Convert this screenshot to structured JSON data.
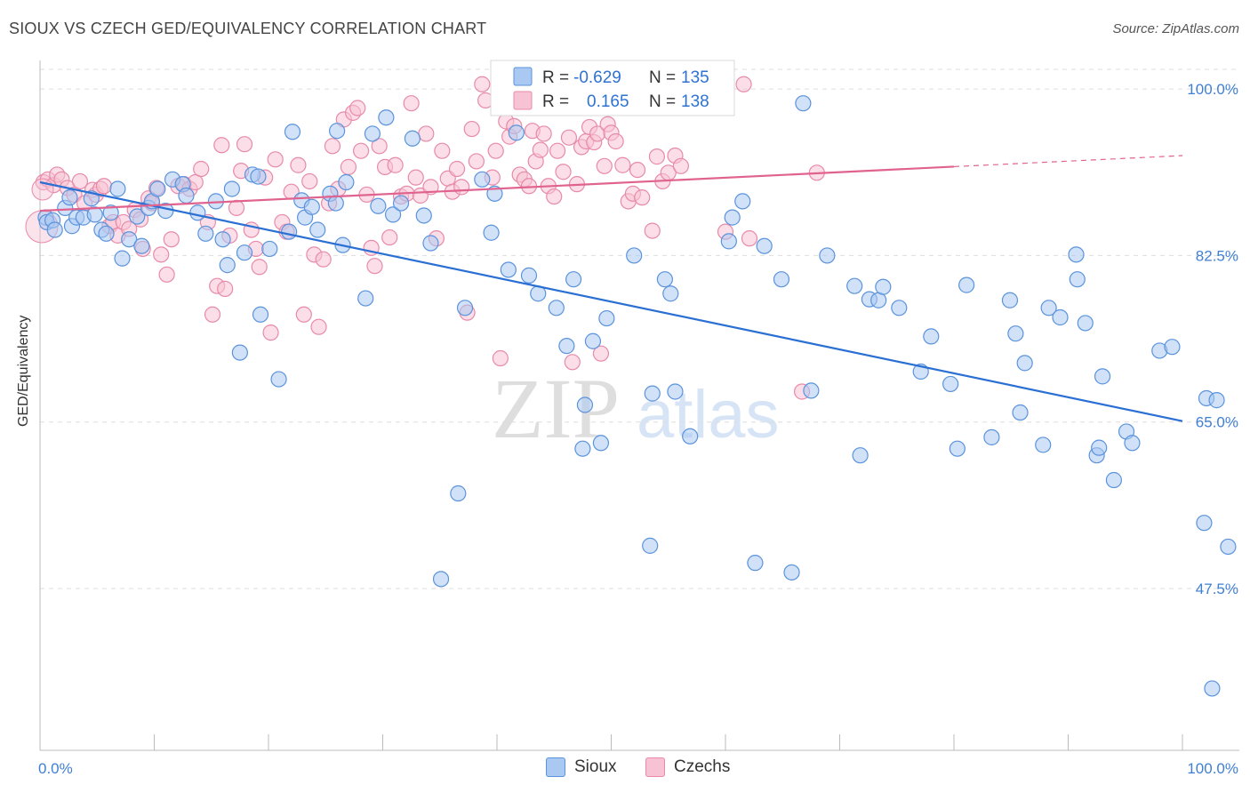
{
  "header": {
    "title": "SIOUX VS CZECH GED/EQUIVALENCY CORRELATION CHART",
    "source": "Source: ZipAtlas.com"
  },
  "watermark": {
    "zip": "ZIP",
    "atlas": "atlas"
  },
  "legend_top": {
    "rows": [
      {
        "r_label": "R =",
        "r_value": "-0.629",
        "n_label": "N =",
        "n_value": "135"
      },
      {
        "r_label": "R =",
        "r_value": "0.165",
        "n_label": "N =",
        "n_value": "138"
      }
    ]
  },
  "legend_bottom": {
    "items": [
      "Sioux",
      "Czechs"
    ]
  },
  "colors": {
    "sioux_fill": "#a9c9f2",
    "sioux_stroke": "#5b93dc",
    "sioux_line": "#2a6fd3",
    "czech_fill": "#f7c2d4",
    "czech_stroke": "#e88aaa",
    "czech_line": "#e0638f",
    "grid": "#dddddd",
    "tick_text": "#3f7fd4"
  },
  "chart_data": {
    "type": "scatter",
    "title": "SIOUX VS CZECH GED/EQUIVALENCY CORRELATION CHART",
    "xlabel": "",
    "ylabel": "GED/Equivalency",
    "x_tick_labels": [
      "0.0%",
      "100.0%"
    ],
    "y_tick_labels": [
      "100.0%",
      "82.5%",
      "65.0%",
      "47.5%"
    ],
    "y_ticks": [
      100.0,
      82.5,
      65.0,
      47.5
    ],
    "xlim": [
      0,
      100
    ],
    "ylim": [
      30.5,
      103
    ],
    "grid": true,
    "legend_position": "top-center",
    "series": [
      {
        "name": "Sioux",
        "r": -0.629,
        "n": 135,
        "trend": {
          "x": [
            0,
            100
          ],
          "y": [
            90.2,
            65.1
          ],
          "dashed_from": null
        },
        "points": [
          [
            0.5,
            86.5
          ],
          [
            0.6,
            86.0
          ],
          [
            1.1,
            86.2
          ],
          [
            1.3,
            85.2
          ],
          [
            2.2,
            87.5
          ],
          [
            2.6,
            88.6
          ],
          [
            2.8,
            85.6
          ],
          [
            3.2,
            86.5
          ],
          [
            3.8,
            86.5
          ],
          [
            4.5,
            88.5
          ],
          [
            4.8,
            86.8
          ],
          [
            5.4,
            85.2
          ],
          [
            5.8,
            84.8
          ],
          [
            6.2,
            87.0
          ],
          [
            6.8,
            89.5
          ],
          [
            7.2,
            82.2
          ],
          [
            7.8,
            84.2
          ],
          [
            8.5,
            86.6
          ],
          [
            8.9,
            83.5
          ],
          [
            9.5,
            87.5
          ],
          [
            9.8,
            88.2
          ],
          [
            10.3,
            89.5
          ],
          [
            11.0,
            87.2
          ],
          [
            11.6,
            90.5
          ],
          [
            12.5,
            90.0
          ],
          [
            12.8,
            88.8
          ],
          [
            13.8,
            87.0
          ],
          [
            14.5,
            84.8
          ],
          [
            15.4,
            88.2
          ],
          [
            16.0,
            84.2
          ],
          [
            16.4,
            81.5
          ],
          [
            16.8,
            89.5
          ],
          [
            17.5,
            72.3
          ],
          [
            17.9,
            82.8
          ],
          [
            18.6,
            91.0
          ],
          [
            19.1,
            90.8
          ],
          [
            19.3,
            76.3
          ],
          [
            20.1,
            83.2
          ],
          [
            20.9,
            69.5
          ],
          [
            21.8,
            85.0
          ],
          [
            22.1,
            95.5
          ],
          [
            22.9,
            88.3
          ],
          [
            23.2,
            86.5
          ],
          [
            23.8,
            87.6
          ],
          [
            24.3,
            85.2
          ],
          [
            25.4,
            89.0
          ],
          [
            25.9,
            88.0
          ],
          [
            26.0,
            95.6
          ],
          [
            26.5,
            83.6
          ],
          [
            26.8,
            90.2
          ],
          [
            28.5,
            78.0
          ],
          [
            29.1,
            95.3
          ],
          [
            29.6,
            87.7
          ],
          [
            30.3,
            97.0
          ],
          [
            30.9,
            86.8
          ],
          [
            31.6,
            88.0
          ],
          [
            32.6,
            94.8
          ],
          [
            33.6,
            86.7
          ],
          [
            34.2,
            83.8
          ],
          [
            35.1,
            48.5
          ],
          [
            36.6,
            57.5
          ],
          [
            37.2,
            77.0
          ],
          [
            38.7,
            90.5
          ],
          [
            39.5,
            84.9
          ],
          [
            39.8,
            89.0
          ],
          [
            41.0,
            81.0
          ],
          [
            41.7,
            95.4
          ],
          [
            42.8,
            80.4
          ],
          [
            43.6,
            78.5
          ],
          [
            45.2,
            77.0
          ],
          [
            46.1,
            73.0
          ],
          [
            46.7,
            80.0
          ],
          [
            47.5,
            62.2
          ],
          [
            47.7,
            66.8
          ],
          [
            48.4,
            73.5
          ],
          [
            49.1,
            62.8
          ],
          [
            49.6,
            75.9
          ],
          [
            52.0,
            82.5
          ],
          [
            53.4,
            52.0
          ],
          [
            53.6,
            68.0
          ],
          [
            54.7,
            80.0
          ],
          [
            55.2,
            78.5
          ],
          [
            55.6,
            68.2
          ],
          [
            56.9,
            63.5
          ],
          [
            60.3,
            84.0
          ],
          [
            60.6,
            86.5
          ],
          [
            61.5,
            88.2
          ],
          [
            62.6,
            50.2
          ],
          [
            63.4,
            83.5
          ],
          [
            64.9,
            80.0
          ],
          [
            65.8,
            49.2
          ],
          [
            66.8,
            98.5
          ],
          [
            67.5,
            68.3
          ],
          [
            68.9,
            82.5
          ],
          [
            71.3,
            79.3
          ],
          [
            71.8,
            61.5
          ],
          [
            72.6,
            77.9
          ],
          [
            73.4,
            77.8
          ],
          [
            73.8,
            79.2
          ],
          [
            75.2,
            77.0
          ],
          [
            77.1,
            70.3
          ],
          [
            78.0,
            74.0
          ],
          [
            79.7,
            69.0
          ],
          [
            80.3,
            62.2
          ],
          [
            81.1,
            79.4
          ],
          [
            83.3,
            63.4
          ],
          [
            84.9,
            77.8
          ],
          [
            85.4,
            74.3
          ],
          [
            85.8,
            66.0
          ],
          [
            86.2,
            71.2
          ],
          [
            87.8,
            62.6
          ],
          [
            88.3,
            77.0
          ],
          [
            89.3,
            76.0
          ],
          [
            90.7,
            82.6
          ],
          [
            90.8,
            80.0
          ],
          [
            91.5,
            75.4
          ],
          [
            92.5,
            61.5
          ],
          [
            92.7,
            62.3
          ],
          [
            93.0,
            69.8
          ],
          [
            94.0,
            58.9
          ],
          [
            95.1,
            64.0
          ],
          [
            95.6,
            62.8
          ],
          [
            98.0,
            72.5
          ],
          [
            99.1,
            72.9
          ],
          [
            101.9,
            54.4
          ],
          [
            102.1,
            67.5
          ],
          [
            102.6,
            37.0
          ],
          [
            103.0,
            67.3
          ],
          [
            104.0,
            51.9
          ]
        ]
      },
      {
        "name": "Czechs",
        "r": 0.165,
        "n": 138,
        "trend": {
          "x": [
            0,
            100
          ],
          "y": [
            87.2,
            93.0
          ],
          "dashed_from": 80
        },
        "points": [
          [
            0.3,
            90.2
          ],
          [
            0.7,
            90.5
          ],
          [
            1.2,
            89.9
          ],
          [
            1.5,
            91.0
          ],
          [
            1.9,
            90.5
          ],
          [
            2.4,
            89.6
          ],
          [
            3.0,
            88.9
          ],
          [
            3.5,
            90.3
          ],
          [
            3.9,
            88.0
          ],
          [
            4.6,
            89.4
          ],
          [
            4.9,
            88.9
          ],
          [
            5.3,
            89.5
          ],
          [
            5.6,
            89.8
          ],
          [
            6.1,
            85.6
          ],
          [
            6.4,
            86.0
          ],
          [
            6.8,
            84.6
          ],
          [
            7.3,
            86.0
          ],
          [
            7.8,
            85.3
          ],
          [
            8.3,
            87.3
          ],
          [
            8.8,
            86.3
          ],
          [
            9.0,
            83.2
          ],
          [
            9.5,
            88.5
          ],
          [
            9.8,
            88.0
          ],
          [
            10.2,
            89.6
          ],
          [
            10.6,
            82.6
          ],
          [
            11.1,
            80.5
          ],
          [
            11.5,
            84.2
          ],
          [
            12.1,
            89.8
          ],
          [
            12.6,
            90.0
          ],
          [
            13.1,
            89.5
          ],
          [
            13.6,
            90.2
          ],
          [
            14.1,
            91.6
          ],
          [
            14.7,
            86.0
          ],
          [
            15.1,
            76.3
          ],
          [
            15.5,
            79.3
          ],
          [
            15.9,
            94.1
          ],
          [
            16.2,
            79.0
          ],
          [
            16.6,
            84.6
          ],
          [
            17.2,
            87.5
          ],
          [
            17.6,
            91.4
          ],
          [
            17.9,
            94.2
          ],
          [
            18.5,
            85.2
          ],
          [
            18.9,
            83.2
          ],
          [
            19.2,
            81.3
          ],
          [
            19.7,
            90.7
          ],
          [
            20.2,
            74.4
          ],
          [
            20.6,
            92.6
          ],
          [
            21.2,
            86.0
          ],
          [
            21.6,
            85.0
          ],
          [
            22.0,
            89.2
          ],
          [
            22.6,
            92.0
          ],
          [
            23.1,
            76.3
          ],
          [
            23.6,
            90.3
          ],
          [
            24.0,
            82.6
          ],
          [
            24.4,
            75.0
          ],
          [
            24.8,
            82.1
          ],
          [
            25.3,
            88.0
          ],
          [
            25.6,
            94.0
          ],
          [
            26.1,
            89.5
          ],
          [
            26.6,
            96.8
          ],
          [
            27.0,
            91.8
          ],
          [
            27.4,
            97.5
          ],
          [
            27.8,
            98.0
          ],
          [
            28.1,
            93.5
          ],
          [
            28.6,
            88.9
          ],
          [
            29.0,
            83.3
          ],
          [
            29.3,
            81.4
          ],
          [
            29.7,
            94.0
          ],
          [
            30.2,
            91.8
          ],
          [
            30.6,
            84.4
          ],
          [
            31.1,
            92.0
          ],
          [
            31.6,
            88.7
          ],
          [
            32.1,
            89.0
          ],
          [
            32.5,
            98.5
          ],
          [
            32.9,
            90.7
          ],
          [
            33.3,
            88.8
          ],
          [
            33.8,
            95.3
          ],
          [
            34.2,
            89.7
          ],
          [
            34.7,
            84.3
          ],
          [
            35.2,
            93.5
          ],
          [
            35.7,
            90.6
          ],
          [
            36.1,
            89.2
          ],
          [
            36.5,
            91.6
          ],
          [
            36.9,
            89.7
          ],
          [
            37.4,
            76.5
          ],
          [
            37.8,
            95.8
          ],
          [
            38.2,
            92.4
          ],
          [
            38.7,
            100.5
          ],
          [
            39.0,
            98.8
          ],
          [
            39.6,
            90.7
          ],
          [
            39.9,
            93.5
          ],
          [
            40.3,
            71.7
          ],
          [
            40.8,
            96.6
          ],
          [
            41.1,
            95.0
          ],
          [
            41.5,
            96.1
          ],
          [
            42.0,
            91.0
          ],
          [
            42.4,
            90.5
          ],
          [
            42.8,
            89.8
          ],
          [
            43.1,
            95.6
          ],
          [
            43.4,
            92.4
          ],
          [
            43.8,
            93.6
          ],
          [
            44.1,
            95.3
          ],
          [
            44.5,
            89.8
          ],
          [
            45.0,
            88.7
          ],
          [
            45.3,
            93.5
          ],
          [
            45.8,
            91.3
          ],
          [
            46.3,
            94.9
          ],
          [
            46.6,
            71.3
          ],
          [
            47.0,
            90.0
          ],
          [
            47.4,
            93.9
          ],
          [
            47.8,
            94.5
          ],
          [
            48.1,
            96.0
          ],
          [
            48.5,
            94.4
          ],
          [
            48.8,
            95.3
          ],
          [
            49.1,
            72.2
          ],
          [
            49.4,
            91.9
          ],
          [
            49.7,
            96.3
          ],
          [
            50.0,
            95.4
          ],
          [
            50.4,
            94.5
          ],
          [
            50.7,
            98.2
          ],
          [
            51.0,
            92.0
          ],
          [
            51.5,
            88.2
          ],
          [
            51.9,
            89.0
          ],
          [
            52.3,
            91.5
          ],
          [
            52.7,
            88.6
          ],
          [
            53.1,
            100.5
          ],
          [
            53.6,
            85.1
          ],
          [
            54.0,
            92.9
          ],
          [
            54.5,
            90.3
          ],
          [
            55.0,
            91.2
          ],
          [
            55.6,
            93.0
          ],
          [
            56.1,
            91.9
          ],
          [
            59.1,
            100.5
          ],
          [
            60.0,
            85.0
          ],
          [
            61.6,
            100.5
          ],
          [
            62.1,
            84.3
          ],
          [
            66.7,
            68.2
          ],
          [
            68.0,
            91.2
          ]
        ]
      }
    ]
  }
}
